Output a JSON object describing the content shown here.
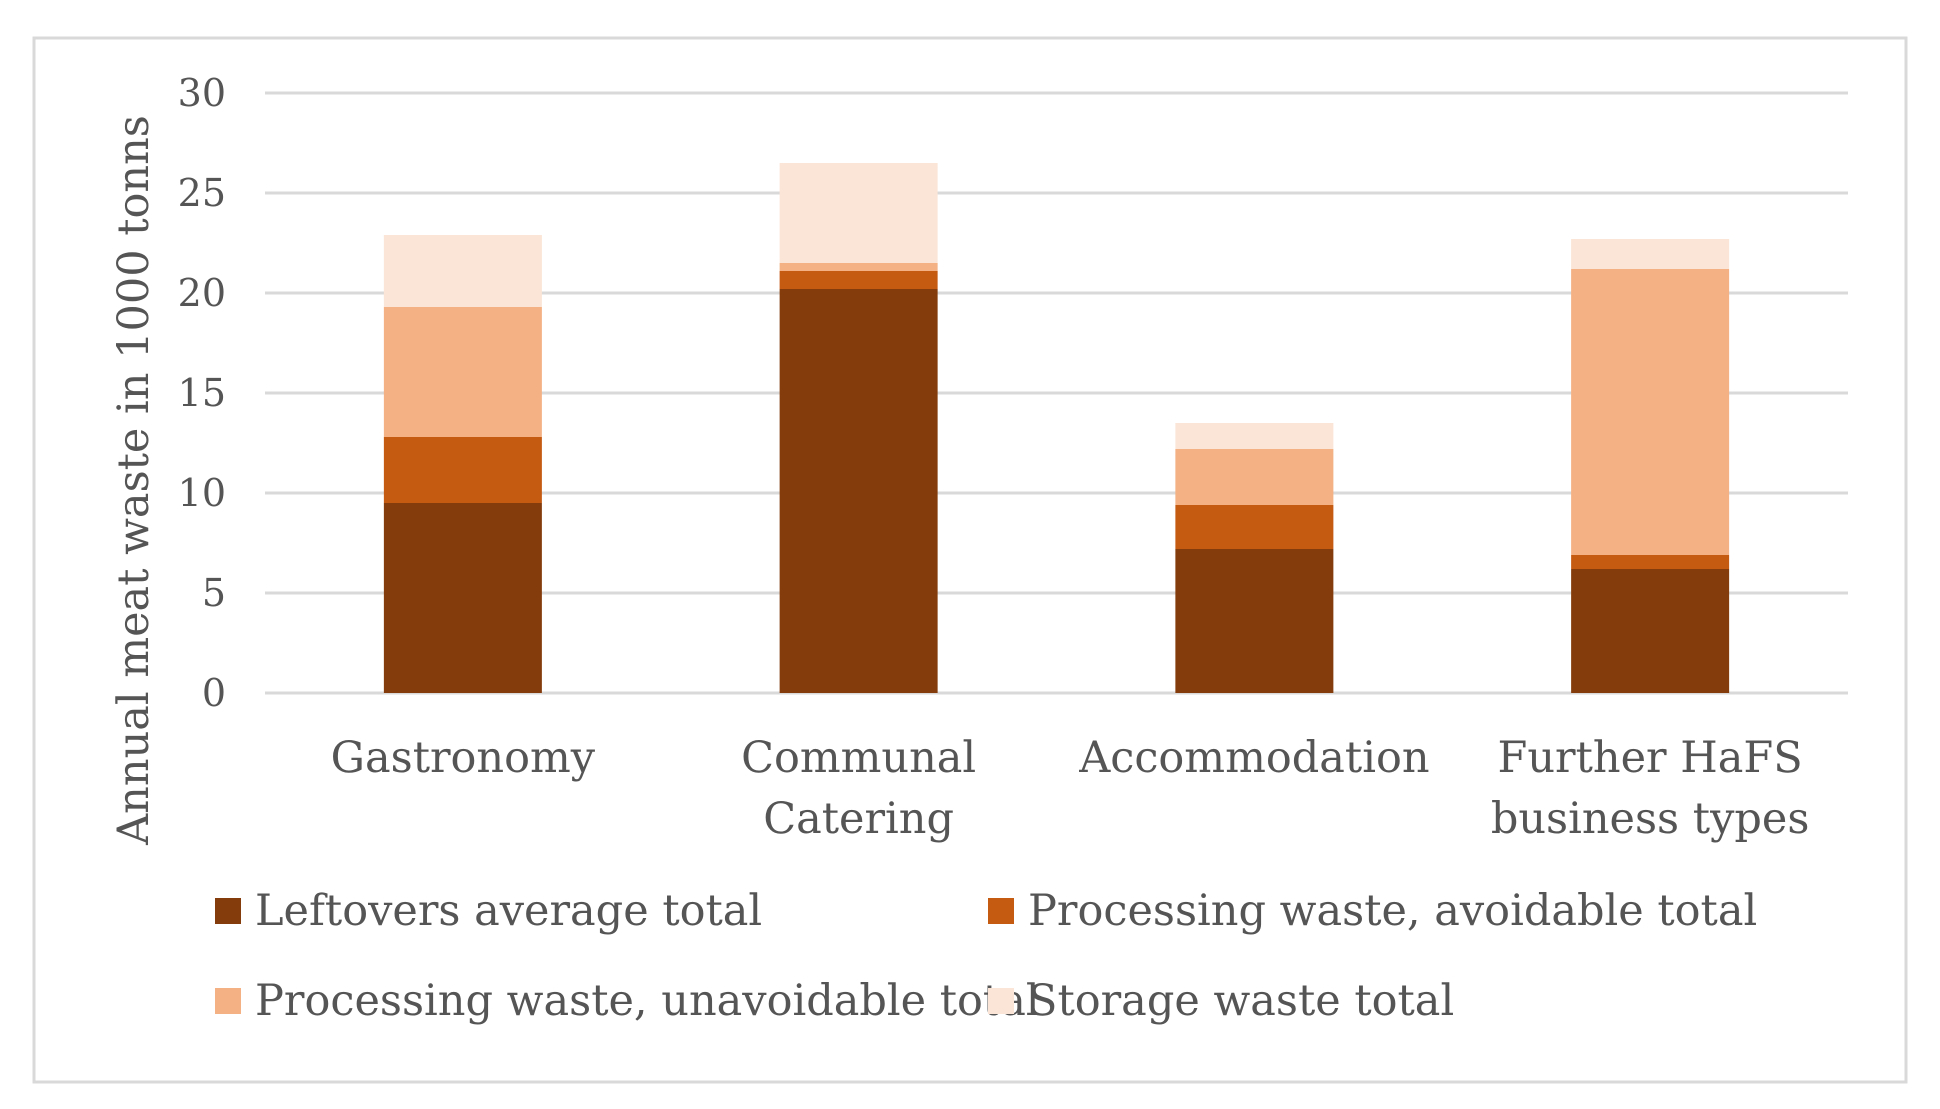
{
  "chart_data": {
    "type": "bar",
    "stacked": true,
    "title": "",
    "xlabel": "",
    "ylabel": "Annual meat waste in 1000 tonns",
    "ylim": [
      0,
      30
    ],
    "yticks": [
      0,
      5,
      10,
      15,
      20,
      25,
      30
    ],
    "grid": true,
    "legend_position": "bottom",
    "categories": [
      [
        "Gastronomy"
      ],
      [
        "Communal",
        "Catering"
      ],
      [
        "Accommodation"
      ],
      [
        "Further HaFS",
        "business types"
      ]
    ],
    "series": [
      {
        "name": "Leftovers average total",
        "color": "#843C0C",
        "values": [
          9.5,
          20.2,
          7.2,
          6.2
        ]
      },
      {
        "name": "Processing waste, avoidable total",
        "color": "#C55A11",
        "values": [
          3.3,
          0.9,
          2.2,
          0.7
        ]
      },
      {
        "name": "Processing waste, unavoidable total",
        "color": "#F4B183",
        "values": [
          6.5,
          0.4,
          2.8,
          14.3
        ]
      },
      {
        "name": "Storage waste total",
        "color": "#FBE5D6",
        "values": [
          3.6,
          5.0,
          1.3,
          1.5
        ]
      }
    ]
  }
}
